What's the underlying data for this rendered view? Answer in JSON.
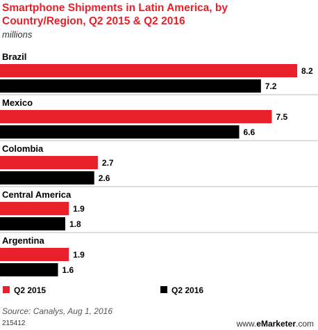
{
  "header": {
    "title": "Smartphone Shipments in Latin America, by Country/Region, Q2 2015 & Q2 2016",
    "subtitle": "millions"
  },
  "footer": {
    "source": "Source: Canalys, Aug 1, 2016",
    "chart_id": "215412",
    "brand_prefix": "www.",
    "brand_name": "eMarketer",
    "brand_suffix": ".com"
  },
  "colors": {
    "q2_2015": "#e8202a",
    "q2_2016": "#000000",
    "title": "#e8202a",
    "divider": "#bbbbbb"
  },
  "chart_data": {
    "type": "bar",
    "orientation": "horizontal",
    "title": "Smartphone Shipments in Latin America, by Country/Region, Q2 2015 & Q2 2016",
    "subtitle": "millions",
    "categories": [
      "Brazil",
      "Mexico",
      "Colombia",
      "Central America",
      "Argentina"
    ],
    "series": [
      {
        "name": "Q2 2015",
        "values": [
          8.2,
          7.5,
          2.7,
          1.9,
          1.9
        ]
      },
      {
        "name": "Q2 2016",
        "values": [
          7.2,
          6.6,
          2.6,
          1.8,
          1.6
        ]
      }
    ],
    "value_labels": [
      [
        "8.2",
        "7.5",
        "2.7",
        "1.9",
        "1.9"
      ],
      [
        "7.2",
        "6.6",
        "2.6",
        "1.8",
        "1.6"
      ]
    ],
    "xlim": [
      0,
      8.2
    ],
    "legend": "bottom",
    "grid": false
  }
}
